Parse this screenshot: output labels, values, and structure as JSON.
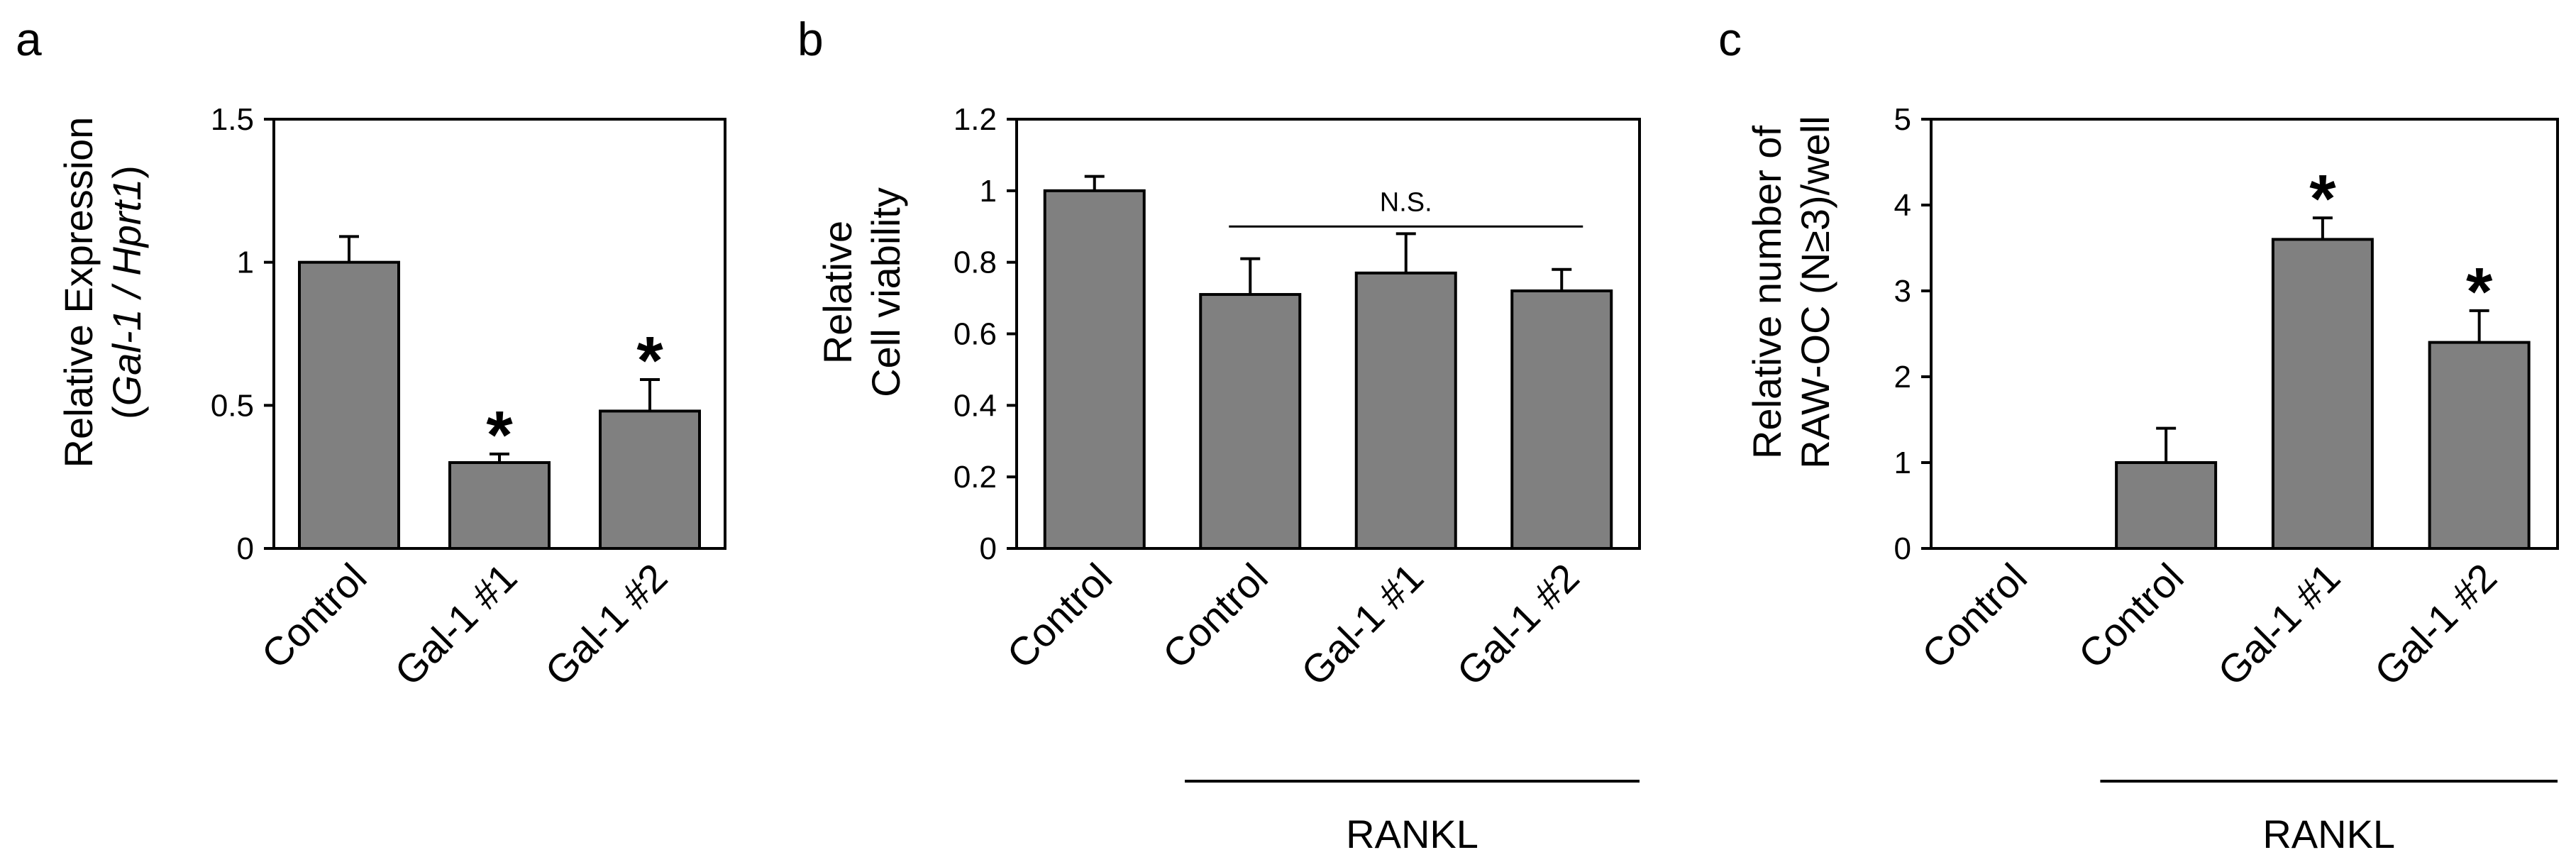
{
  "colors": {
    "bar": "#808080",
    "axis": "#000000"
  },
  "chart_data": [
    {
      "panel": "a",
      "type": "bar",
      "categories": [
        "Control",
        "Gal-1 #1",
        "Gal-1 #2"
      ],
      "values": [
        1.0,
        0.3,
        0.48
      ],
      "errors": [
        0.09,
        0.03,
        0.11
      ],
      "significance": [
        "",
        "*",
        "*"
      ],
      "ylabel_line1": "Relative Expression",
      "ylabel_line2_parts": [
        "(",
        "Gal-1 / Hprt1",
        ")"
      ],
      "yticks": [
        "0",
        "0.5",
        "1",
        "1.5"
      ],
      "ylim": [
        0,
        1.5
      ],
      "group": null
    },
    {
      "panel": "b",
      "type": "bar",
      "categories": [
        "Control",
        "Control",
        "Gal-1 #1",
        "Gal-1 #2"
      ],
      "values": [
        1.0,
        0.71,
        0.77,
        0.72
      ],
      "errors": [
        0.04,
        0.1,
        0.11,
        0.06
      ],
      "significance": [
        "",
        "",
        "",
        ""
      ],
      "ylabel_line1": "Relative",
      "ylabel_line2": "Cell viability",
      "yticks": [
        "0",
        "0.2",
        "0.4",
        "0.6",
        "0.8",
        "1",
        "1.2"
      ],
      "ylim": [
        0,
        1.2
      ],
      "annotation": {
        "text": "N.S.",
        "from_index": 1,
        "to_index": 3,
        "y": 0.9
      },
      "group": {
        "label": "RANKL",
        "from_index": 1,
        "to_index": 3
      }
    },
    {
      "panel": "c",
      "type": "bar",
      "categories": [
        "Control",
        "Control",
        "Gal-1 #1",
        "Gal-1 #2"
      ],
      "values": [
        0,
        1.0,
        3.6,
        2.4
      ],
      "errors": [
        0,
        0.4,
        0.25,
        0.37
      ],
      "significance": [
        "",
        "",
        "*",
        "*"
      ],
      "ylabel_line1": "Relative number of",
      "ylabel_line2": "RAW-OC (N≥3)/well",
      "yticks": [
        "0",
        "1",
        "2",
        "3",
        "4",
        "5"
      ],
      "ylim": [
        0,
        5
      ],
      "group": {
        "label": "RANKL",
        "from_index": 1,
        "to_index": 3
      }
    }
  ]
}
